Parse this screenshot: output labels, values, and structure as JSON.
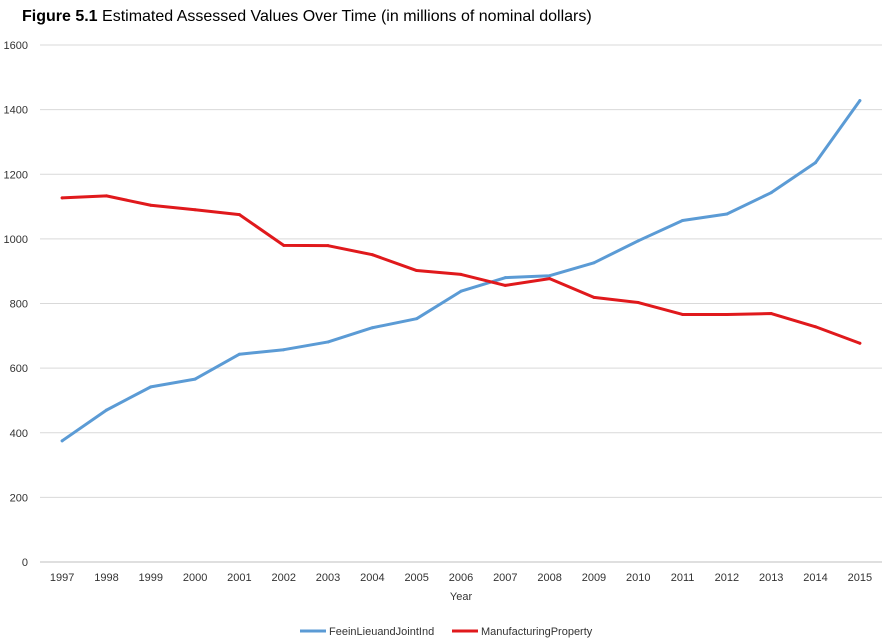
{
  "title": {
    "figure_label": "Figure 5.1",
    "text": "Estimated Assessed Values Over Time (in millions of nominal dollars)"
  },
  "chart_data": {
    "type": "line",
    "title": "Figure 5.1 Estimated Assessed Values Over Time (in millions of nominal dollars)",
    "xlabel": "Year",
    "ylabel": "",
    "ylim": [
      0,
      1600
    ],
    "yticks": [
      0,
      200,
      400,
      600,
      800,
      1000,
      1200,
      1400,
      1600
    ],
    "categories": [
      "1997",
      "1998",
      "1999",
      "2000",
      "2001",
      "2002",
      "2003",
      "2004",
      "2005",
      "2006",
      "2007",
      "2008",
      "2009",
      "2010",
      "2011",
      "2012",
      "2013",
      "2014",
      "2015"
    ],
    "grid": "horizontal",
    "legend_position": "bottom",
    "series": [
      {
        "name": "FeeinLieuandJointInd",
        "color": "#5b9bd5",
        "values": [
          375,
          470,
          542,
          566,
          643,
          657,
          681,
          725,
          753,
          838,
          880,
          886,
          926,
          994,
          1057,
          1077,
          1143,
          1236,
          1428
        ]
      },
      {
        "name": "ManufacturingProperty",
        "color": "#e0191c",
        "values": [
          1127,
          1133,
          1104,
          1090,
          1075,
          980,
          979,
          951,
          902,
          890,
          856,
          877,
          819,
          803,
          766,
          766,
          769,
          728,
          677
        ]
      }
    ]
  }
}
